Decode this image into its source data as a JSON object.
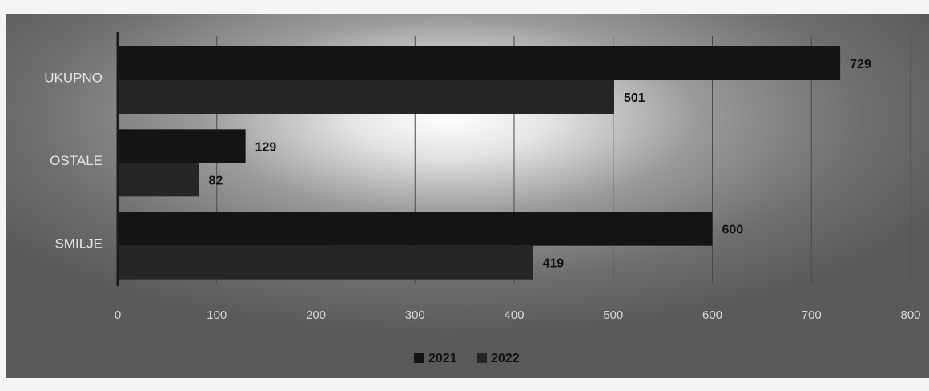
{
  "chart_data": {
    "type": "bar",
    "orientation": "horizontal",
    "categories": [
      "UKUPNO",
      "OSTALE",
      "SMILJE"
    ],
    "series": [
      {
        "name": "2021",
        "values": [
          729,
          129,
          600
        ],
        "color": "#141414"
      },
      {
        "name": "2022",
        "values": [
          501,
          82,
          419
        ],
        "color": "#262626"
      }
    ],
    "xlim": [
      0,
      800
    ],
    "xticks": [
      0,
      100,
      200,
      300,
      400,
      500,
      600,
      700,
      800
    ],
    "grid": true,
    "legend": "bottom-center",
    "title": "",
    "xlabel": "",
    "ylabel": ""
  }
}
